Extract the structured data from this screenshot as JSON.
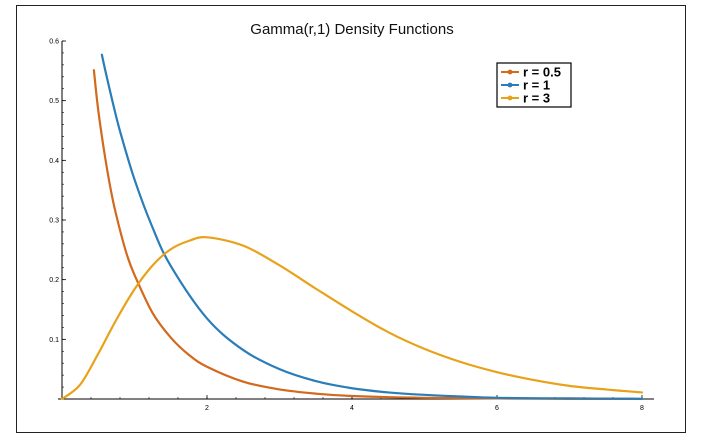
{
  "chart_data": {
    "type": "line",
    "title": "Gamma(r,1) Density Functions",
    "xlabel": "",
    "ylabel": "",
    "xlim": [
      0,
      8
    ],
    "ylim": [
      0,
      0.6
    ],
    "x_ticks": [
      2,
      4,
      6,
      8
    ],
    "x_tick_labels": [
      "2",
      "4",
      "6",
      "8"
    ],
    "y_ticks": [
      0.1,
      0.2,
      0.3,
      0.4,
      0.5,
      0.6
    ],
    "y_tick_labels": [
      "0.1",
      "0.2",
      "0.3",
      "0.4",
      "0.5",
      "0.6"
    ],
    "grid": false,
    "legend_position": "top-right",
    "series": [
      {
        "name": "r = 0.5",
        "color": "#d2691e",
        "x": [
          0.44,
          0.5,
          0.6,
          0.7,
          0.8,
          0.9,
          1.0,
          1.25,
          1.5,
          1.75,
          2.0,
          2.5,
          3.0,
          3.5,
          4.0,
          5.0,
          6.0,
          7.0,
          8.0
        ],
        "y": [
          0.551,
          0.484,
          0.401,
          0.334,
          0.283,
          0.24,
          0.208,
          0.144,
          0.103,
          0.074,
          0.054,
          0.029,
          0.016,
          0.009,
          0.005,
          0.002,
          0.001,
          0.0002,
          0.0001
        ]
      },
      {
        "name": "r = 1",
        "color": "#2a7db8",
        "x": [
          0.55,
          0.6,
          0.7,
          0.8,
          1.0,
          1.25,
          1.5,
          2.0,
          2.5,
          3.0,
          3.5,
          4.0,
          4.5,
          5.0,
          6.0,
          7.0,
          8.0
        ],
        "y": [
          0.577,
          0.549,
          0.497,
          0.449,
          0.368,
          0.287,
          0.223,
          0.135,
          0.082,
          0.05,
          0.03,
          0.018,
          0.011,
          0.007,
          0.002,
          0.001,
          0.0003
        ]
      },
      {
        "name": "r = 3",
        "color": "#e8a21a",
        "x": [
          0,
          0.25,
          0.5,
          0.75,
          1.0,
          1.25,
          1.5,
          1.75,
          2.0,
          2.5,
          3.0,
          3.5,
          4.0,
          4.5,
          5.0,
          5.5,
          6.0,
          6.5,
          7.0,
          7.5,
          8.0
        ],
        "y": [
          0,
          0.024,
          0.076,
          0.133,
          0.184,
          0.224,
          0.251,
          0.265,
          0.271,
          0.257,
          0.224,
          0.185,
          0.147,
          0.112,
          0.084,
          0.062,
          0.045,
          0.032,
          0.022,
          0.016,
          0.011
        ]
      }
    ]
  }
}
